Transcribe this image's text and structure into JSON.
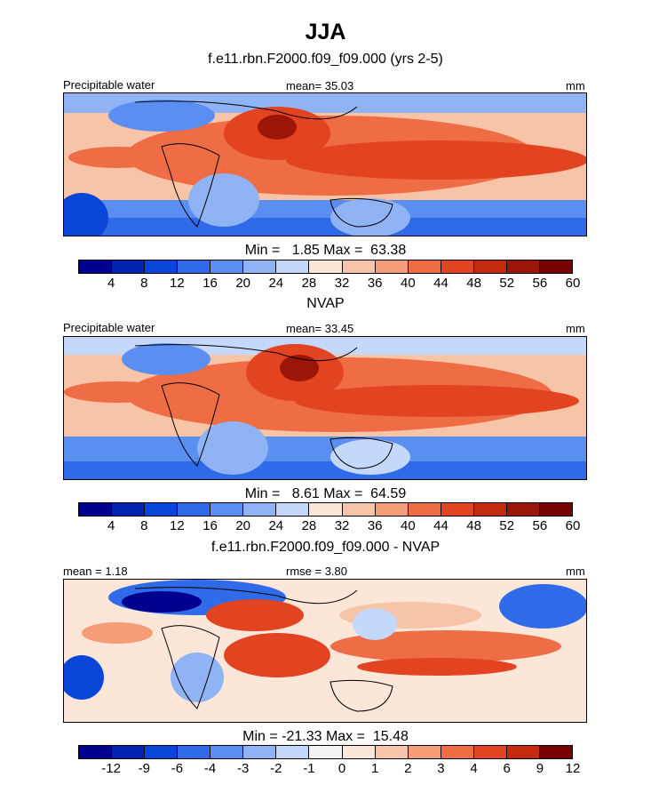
{
  "title": "JJA",
  "colors": {
    "precip_scale": [
      "#00008f",
      "#0022b0",
      "#0a45d9",
      "#2f6ae8",
      "#5a8ef0",
      "#8fb3f5",
      "#c3d8fa",
      "#fbe6d8",
      "#f8c4a8",
      "#f59c78",
      "#ef6d45",
      "#e24320",
      "#c42a0e",
      "#9b1606",
      "#770000"
    ],
    "diff_scale": [
      "#00008f",
      "#0022b0",
      "#0a45d9",
      "#2f6ae8",
      "#5a8ef0",
      "#8fb3f5",
      "#c3d8fa",
      "#f3f3f3",
      "#fbe6d8",
      "#f8c4a8",
      "#f59c78",
      "#ef6d45",
      "#e24320",
      "#c42a0e",
      "#770000"
    ]
  },
  "panels": [
    {
      "heading": "f.e11.rbn.F2000.f09_f09.000 (yrs 2-5)",
      "left_label": "Precipitable water",
      "center_label": "mean=  35.03",
      "right_label": "mm",
      "minmax": "Min =   1.85 Max =  63.38",
      "colorbar_ticks": [
        "4",
        "8",
        "12",
        "16",
        "20",
        "24",
        "28",
        "32",
        "36",
        "40",
        "44",
        "48",
        "52",
        "56",
        "60"
      ],
      "scale": "precip_scale"
    },
    {
      "heading": "NVAP",
      "left_label": "Precipitable water",
      "center_label": "mean=  33.45",
      "right_label": "mm",
      "minmax": "Min =   8.61 Max =  64.59",
      "colorbar_ticks": [
        "4",
        "8",
        "12",
        "16",
        "20",
        "24",
        "28",
        "32",
        "36",
        "40",
        "44",
        "48",
        "52",
        "56",
        "60"
      ],
      "scale": "precip_scale"
    },
    {
      "heading": "f.e11.rbn.F2000.f09_f09.000 - NVAP",
      "left_label": "mean =   1.18",
      "center_label": "rmse =   3.80",
      "right_label": "mm",
      "minmax": "Min = -21.33 Max =  15.48",
      "colorbar_ticks": [
        "-12",
        "-9",
        "-6",
        "-4",
        "-3",
        "-2",
        "-1",
        "0",
        "1",
        "2",
        "3",
        "4",
        "6",
        "9",
        "12"
      ],
      "scale": "diff_scale"
    }
  ]
}
